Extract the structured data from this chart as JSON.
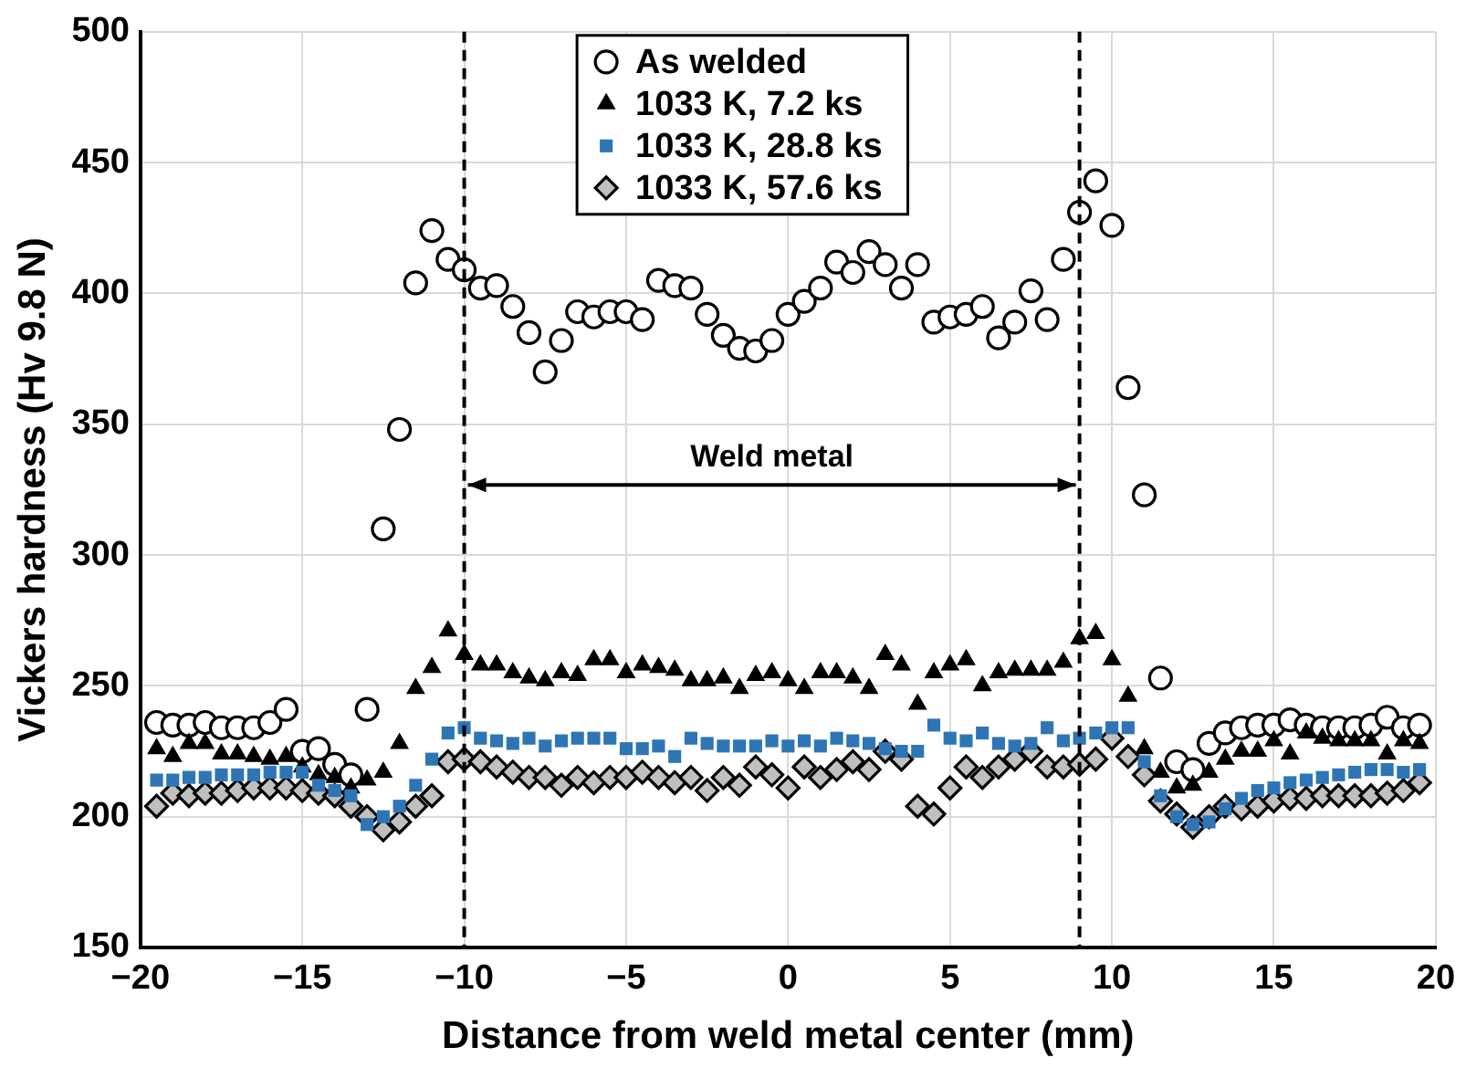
{
  "chart_data": {
    "type": "scatter",
    "xlabel": "Distance from weld metal center (mm)",
    "ylabel": "Vickers hardness (Hv 9.8 N)",
    "xlim": [
      -20,
      20
    ],
    "xticks": [
      -20,
      -15,
      -10,
      -5,
      0,
      5,
      10,
      15,
      20
    ],
    "ylim": [
      150,
      500
    ],
    "yticks": [
      150,
      200,
      250,
      300,
      350,
      400,
      450,
      500
    ],
    "grid": true,
    "legend": "top",
    "x": [
      -19.5,
      -19,
      -18.5,
      -18,
      -17.5,
      -17,
      -16.5,
      -16,
      -15.5,
      -15,
      -14.5,
      -14,
      -13.5,
      -13,
      -12.5,
      -12,
      -11.5,
      -11,
      -10.5,
      -10,
      -9.5,
      -9,
      -8.5,
      -8,
      -7.5,
      -7,
      -6.5,
      -6,
      -5.5,
      -5,
      -4.5,
      -4,
      -3.5,
      -3,
      -2.5,
      -2,
      -1.5,
      -1,
      -0.5,
      0,
      0.5,
      1,
      1.5,
      2,
      2.5,
      3,
      3.5,
      4,
      4.5,
      5,
      5.5,
      6,
      6.5,
      7,
      7.5,
      8,
      8.5,
      9,
      9.5,
      10,
      10.5,
      11,
      11.5,
      12,
      12.5,
      13,
      13.5,
      14,
      14.5,
      15,
      15.5,
      16,
      16.5,
      17,
      17.5,
      18,
      18.5,
      19,
      19.5
    ],
    "series": [
      {
        "name": "As welded",
        "color": "#000000",
        "marker": "circle",
        "values": [
          236,
          235,
          235,
          236,
          234,
          234,
          234,
          236,
          241,
          225,
          226,
          220,
          216,
          241,
          310,
          348,
          404,
          424,
          413,
          409,
          402,
          403,
          395,
          385,
          370,
          382,
          393,
          391,
          393,
          393,
          390,
          405,
          403,
          402,
          392,
          384,
          379,
          378,
          382,
          392,
          397,
          402,
          412,
          408,
          416,
          411,
          402,
          411,
          389,
          391,
          392,
          395,
          383,
          389,
          401,
          390,
          413,
          431,
          443,
          426,
          364,
          323,
          253,
          221,
          218,
          228,
          232,
          234,
          235,
          235,
          237,
          235,
          234,
          234,
          234,
          235,
          238,
          234,
          235
        ]
      },
      {
        "name": "1033 K, 7.2 ks",
        "color": "#000000",
        "marker": "triangle",
        "values": [
          226,
          223,
          228,
          228,
          224,
          224,
          223,
          222,
          223,
          219,
          216,
          215,
          211,
          214,
          217,
          228,
          249,
          257,
          271,
          262,
          258,
          258,
          255,
          253,
          252,
          255,
          254,
          260,
          260,
          255,
          258,
          257,
          256,
          252,
          252,
          253,
          249,
          254,
          255,
          252,
          249,
          255,
          255,
          253,
          249,
          262,
          258,
          243,
          255,
          258,
          260,
          250,
          255,
          256,
          256,
          256,
          259,
          268,
          270,
          260,
          246,
          226,
          217,
          211,
          212,
          217,
          222,
          225,
          225,
          229,
          224,
          232,
          230,
          229,
          229,
          229,
          224,
          229,
          228
        ]
      },
      {
        "name": "1033 K, 28.8 ks",
        "color": "#2e75b6",
        "marker": "square",
        "values": [
          214,
          214,
          215,
          215,
          216,
          216,
          216,
          217,
          217,
          217,
          212,
          210,
          208,
          197,
          200,
          204,
          212,
          222,
          232,
          234,
          230,
          229,
          228,
          230,
          227,
          229,
          230,
          230,
          230,
          226,
          226,
          227,
          223,
          230,
          228,
          227,
          227,
          227,
          229,
          227,
          229,
          227,
          230,
          229,
          228,
          226,
          225,
          225,
          235,
          230,
          229,
          232,
          228,
          227,
          228,
          234,
          229,
          230,
          232,
          234,
          234,
          221,
          208,
          200,
          197,
          198,
          203,
          207,
          210,
          211,
          213,
          214,
          215,
          216,
          217,
          218,
          218,
          217,
          218
        ]
      },
      {
        "name": "1033 K, 57.6 ks",
        "color": "#bfbfbf",
        "marker": "diamond",
        "values": [
          204,
          209,
          208,
          209,
          209,
          210,
          211,
          211,
          211,
          210,
          209,
          208,
          204,
          200,
          195,
          198,
          204,
          208,
          221,
          222,
          221,
          219,
          217,
          215,
          215,
          212,
          215,
          213,
          215,
          215,
          217,
          215,
          213,
          215,
          210,
          215,
          212,
          219,
          216,
          211,
          219,
          215,
          218,
          221,
          218,
          225,
          222,
          204,
          201,
          211,
          219,
          215,
          219,
          222,
          225,
          219,
          219,
          220,
          222,
          230,
          223,
          216,
          206,
          201,
          196,
          200,
          204,
          203,
          204,
          206,
          207,
          207,
          208,
          208,
          208,
          208,
          209,
          210,
          213
        ]
      }
    ],
    "ref_lines": [
      {
        "axis": "x",
        "value": -10,
        "color": "#000000",
        "line_style": "dashed"
      },
      {
        "axis": "x",
        "value": 9,
        "color": "#000000",
        "line_style": "dashed"
      }
    ],
    "annotations": [
      "Weld metal"
    ]
  }
}
